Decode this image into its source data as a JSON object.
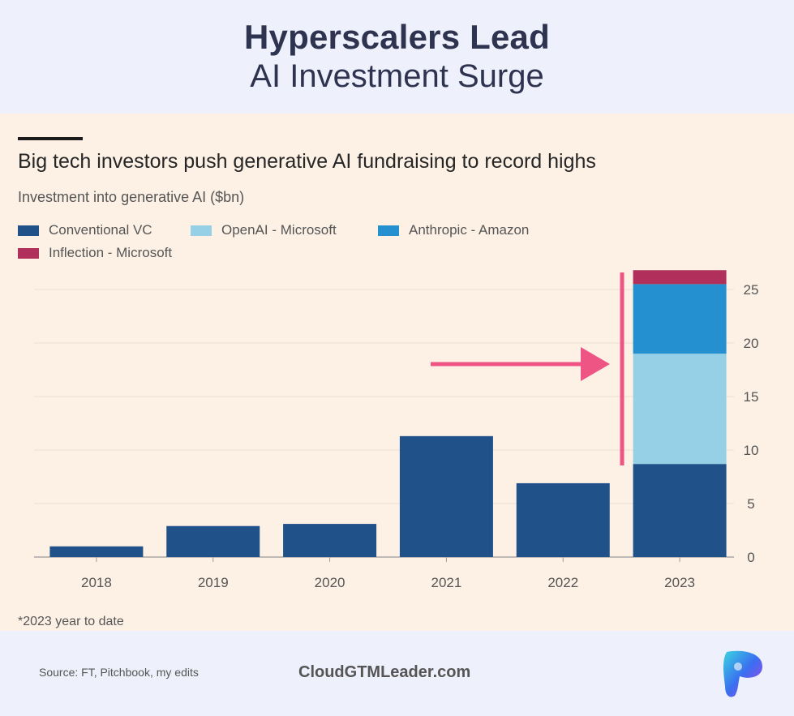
{
  "header": {
    "title_bold": "Hyperscalers Lead",
    "title_regular": "AI Investment Surge"
  },
  "colors": {
    "background": "#eef0fb",
    "panel": "#fdf1e6",
    "conventional_vc": "#205289",
    "openai_microsoft": "#95d0e6",
    "anthropic_amazon": "#2590cf",
    "inflection_microsoft": "#b0305b",
    "annotation": "#ee5585"
  },
  "chart_data": {
    "type": "bar",
    "stacked": true,
    "title": "Big tech investors push generative AI fundraising to record highs",
    "subtitle": "Investment into generative AI ($bn)",
    "categories": [
      "2018",
      "2019",
      "2020",
      "2021",
      "2022",
      "2023"
    ],
    "series": [
      {
        "name": "Conventional VC",
        "color": "#205289",
        "values": [
          1.0,
          2.9,
          3.1,
          11.3,
          6.9,
          8.7
        ]
      },
      {
        "name": "OpenAI - Microsoft",
        "color": "#95d0e6",
        "values": [
          0,
          0,
          0,
          0,
          0,
          10.3
        ]
      },
      {
        "name": "Anthropic - Amazon",
        "color": "#2590cf",
        "values": [
          0,
          0,
          0,
          0,
          0,
          6.5
        ]
      },
      {
        "name": "Inflection - Microsoft",
        "color": "#b0305b",
        "values": [
          0,
          0,
          0,
          0,
          0,
          1.3
        ]
      }
    ],
    "yticks": [
      "0",
      "5",
      "10",
      "15",
      "20",
      "25"
    ],
    "ylim": [
      0,
      27
    ],
    "xlabel": "",
    "ylabel": "",
    "y_axis_side": "right",
    "legend_position": "top-left",
    "footnote": "*2023 year to date",
    "annotation": "arrow pointing to 2023 big tech investments"
  },
  "footer": {
    "source": "Source: FT, Pitchbook, my edits",
    "brand": "CloudGTMLeader.com"
  }
}
